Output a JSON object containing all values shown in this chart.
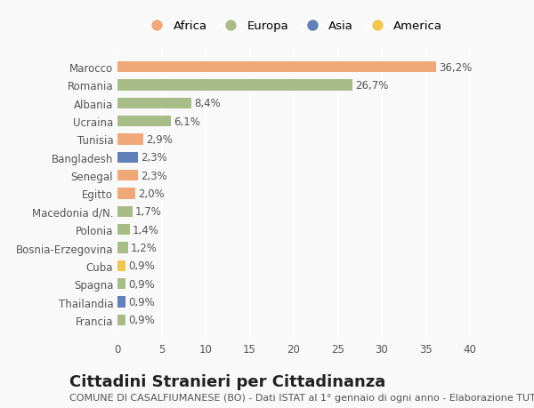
{
  "countries": [
    "Marocco",
    "Romania",
    "Albania",
    "Ucraina",
    "Tunisia",
    "Bangladesh",
    "Senegal",
    "Egitto",
    "Macedonia d/N.",
    "Polonia",
    "Bosnia-Erzegovina",
    "Cuba",
    "Spagna",
    "Thailandia",
    "Francia"
  ],
  "values": [
    36.2,
    26.7,
    8.4,
    6.1,
    2.9,
    2.3,
    2.3,
    2.0,
    1.7,
    1.4,
    1.2,
    0.9,
    0.9,
    0.9,
    0.9
  ],
  "labels": [
    "36,2%",
    "26,7%",
    "8,4%",
    "6,1%",
    "2,9%",
    "2,3%",
    "2,3%",
    "2,0%",
    "1,7%",
    "1,4%",
    "1,2%",
    "0,9%",
    "0,9%",
    "0,9%",
    "0,9%"
  ],
  "continents": [
    "Africa",
    "Europa",
    "Europa",
    "Europa",
    "Africa",
    "Asia",
    "Africa",
    "Africa",
    "Europa",
    "Europa",
    "Europa",
    "America",
    "Europa",
    "Asia",
    "Europa"
  ],
  "continent_colors": {
    "Africa": "#F0A878",
    "Europa": "#A8BC87",
    "Asia": "#6080B8",
    "America": "#F0C850"
  },
  "legend_order": [
    "Africa",
    "Europa",
    "Asia",
    "America"
  ],
  "title": "Cittadini Stranieri per Cittadinanza",
  "subtitle": "COMUNE DI CASALFIUMANESE (BO) - Dati ISTAT al 1° gennaio di ogni anno - Elaborazione TUTTITALIA.IT",
  "xlim": [
    0,
    40
  ],
  "xticks": [
    0,
    5,
    10,
    15,
    20,
    25,
    30,
    35,
    40
  ],
  "bg_color": "#f9f9f9",
  "bar_height": 0.6,
  "label_fontsize": 8.5,
  "tick_fontsize": 8.5,
  "title_fontsize": 13,
  "subtitle_fontsize": 8
}
